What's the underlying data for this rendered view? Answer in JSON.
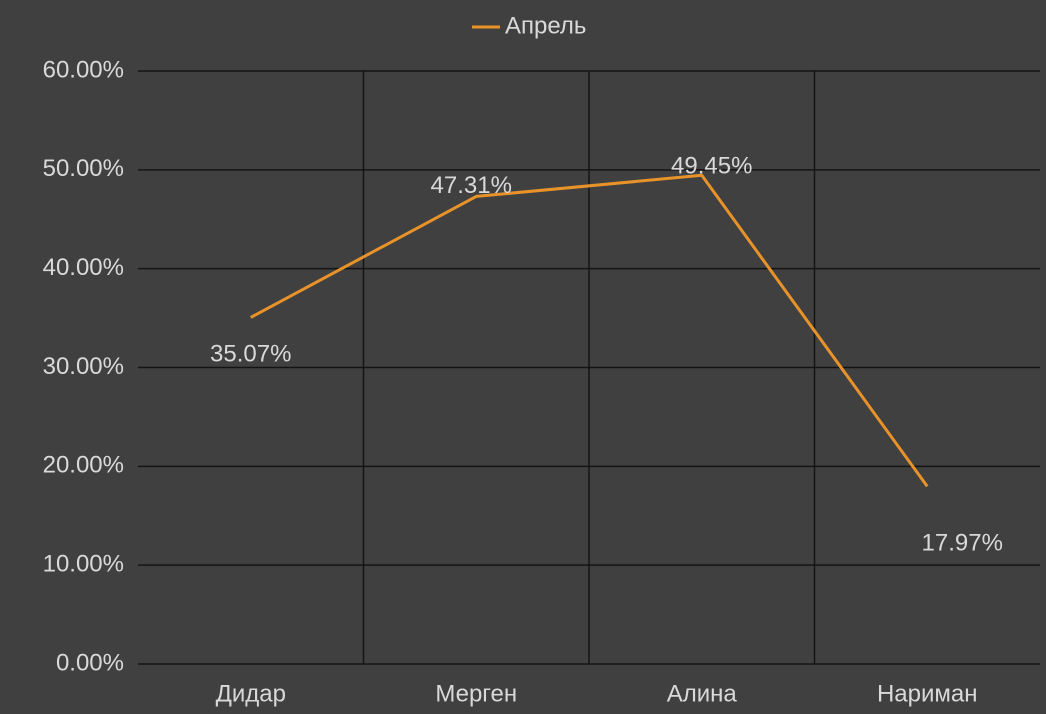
{
  "chart_data": {
    "type": "line",
    "categories": [
      "Дидар",
      "Мерген",
      "Алина",
      "Нариман"
    ],
    "series": [
      {
        "name": "Апрель",
        "color": "#e8922a",
        "values": [
          35.07,
          47.31,
          49.45,
          17.97
        ],
        "value_labels": [
          "35.07%",
          "47.31%",
          "49.45%",
          "17.97%"
        ]
      }
    ],
    "ylim": [
      0,
      60
    ],
    "yticks": [
      {
        "value": 0,
        "label": "0.00%"
      },
      {
        "value": 10,
        "label": "10.00%"
      },
      {
        "value": 20,
        "label": "20.00%"
      },
      {
        "value": 30,
        "label": "30.00%"
      },
      {
        "value": 40,
        "label": "40.00%"
      },
      {
        "value": 50,
        "label": "50.00%"
      },
      {
        "value": 60,
        "label": "60.00%"
      }
    ],
    "grid": true,
    "legend": "top"
  }
}
